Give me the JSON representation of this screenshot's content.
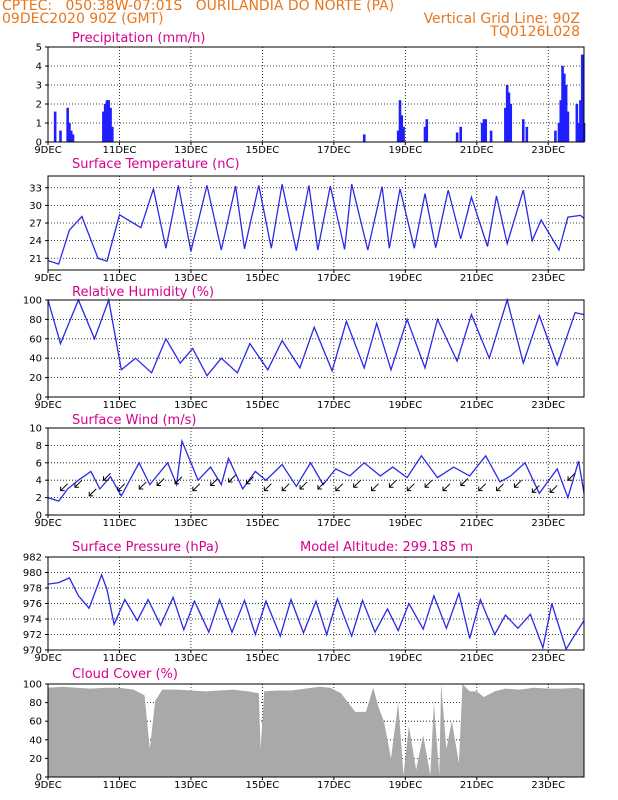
{
  "header": {
    "line1_left": "CPTEC:   050:38W-07:01S   OURILANDIA DO NORTE (PA)",
    "line2_left": "09DEC2020 90Z (GMT)",
    "line2_right": "Vertical Grid Line: 90Z",
    "line3_right": "TQ0126L028"
  },
  "x_ticks": [
    "9DEC",
    "11DEC",
    "13DEC",
    "15DEC",
    "17DEC",
    "19DEC",
    "21DEC",
    "23DEC"
  ],
  "x_tick_days": [
    0,
    2,
    4,
    6,
    8,
    10,
    12,
    14
  ],
  "x_range_days": [
    0,
    15
  ],
  "colors": {
    "line": "#2a2ae6",
    "bar": "#1f1fff",
    "cloud": "#a9a9a9",
    "title": "#d6008f",
    "header": "#e8761c"
  },
  "chart_data": [
    {
      "type": "bar",
      "title": "Precipitation (mm/h)",
      "ylim": [
        0,
        5
      ],
      "yticks": [
        0,
        1,
        2,
        3,
        4,
        5
      ],
      "bars": [
        {
          "t": 0.2,
          "v": 1.6
        },
        {
          "t": 0.35,
          "v": 0.6
        },
        {
          "t": 0.55,
          "v": 1.8
        },
        {
          "t": 0.6,
          "v": 1.0
        },
        {
          "t": 0.65,
          "v": 0.6
        },
        {
          "t": 0.7,
          "v": 0.4
        },
        {
          "t": 1.55,
          "v": 1.6
        },
        {
          "t": 1.6,
          "v": 2.0
        },
        {
          "t": 1.65,
          "v": 2.2
        },
        {
          "t": 1.7,
          "v": 2.2
        },
        {
          "t": 1.75,
          "v": 1.8
        },
        {
          "t": 1.8,
          "v": 0.8
        },
        {
          "t": 8.85,
          "v": 0.4
        },
        {
          "t": 9.8,
          "v": 0.6
        },
        {
          "t": 9.85,
          "v": 2.2
        },
        {
          "t": 9.9,
          "v": 1.4
        },
        {
          "t": 9.95,
          "v": 0.8
        },
        {
          "t": 10.55,
          "v": 0.8
        },
        {
          "t": 10.6,
          "v": 1.2
        },
        {
          "t": 11.45,
          "v": 0.5
        },
        {
          "t": 11.55,
          "v": 0.8
        },
        {
          "t": 12.15,
          "v": 1.0
        },
        {
          "t": 12.2,
          "v": 1.2
        },
        {
          "t": 12.25,
          "v": 1.2
        },
        {
          "t": 12.4,
          "v": 0.6
        },
        {
          "t": 12.8,
          "v": 1.8
        },
        {
          "t": 12.85,
          "v": 3.0
        },
        {
          "t": 12.9,
          "v": 2.6
        },
        {
          "t": 12.95,
          "v": 2.0
        },
        {
          "t": 13.3,
          "v": 1.2
        },
        {
          "t": 13.4,
          "v": 0.8
        },
        {
          "t": 14.2,
          "v": 0.6
        },
        {
          "t": 14.3,
          "v": 1.0
        },
        {
          "t": 14.35,
          "v": 2.2
        },
        {
          "t": 14.4,
          "v": 4.0
        },
        {
          "t": 14.45,
          "v": 3.6
        },
        {
          "t": 14.5,
          "v": 3.0
        },
        {
          "t": 14.55,
          "v": 1.6
        },
        {
          "t": 14.8,
          "v": 2.0
        },
        {
          "t": 14.85,
          "v": 1.0
        },
        {
          "t": 14.9,
          "v": 2.2
        },
        {
          "t": 14.95,
          "v": 4.6
        },
        {
          "t": 15.0,
          "v": 1.0
        }
      ]
    },
    {
      "type": "line",
      "title": "Surface Temperature (nC)",
      "ylim": [
        19,
        35
      ],
      "yticks": [
        21,
        24,
        27,
        30,
        33
      ],
      "y_top_label": "",
      "x": [
        0,
        0.3,
        0.6,
        0.95,
        1.4,
        1.65,
        2.0,
        2.6,
        2.95,
        3.3,
        3.65,
        4.0,
        4.45,
        4.85,
        5.25,
        5.5,
        5.9,
        6.25,
        6.55,
        6.95,
        7.3,
        7.55,
        7.9,
        8.3,
        8.5,
        8.95,
        9.35,
        9.55,
        9.85,
        10.25,
        10.55,
        10.85,
        11.2,
        11.55,
        11.85,
        12.3,
        12.55,
        12.85,
        13.3,
        13.55,
        13.8,
        14.3,
        14.55,
        14.9,
        15.0
      ],
      "values": [
        20.6,
        20.0,
        25.8,
        28.1,
        21.0,
        20.5,
        28.4,
        26.2,
        32.8,
        22.7,
        33.4,
        22.2,
        33.4,
        22.4,
        33.3,
        22.6,
        33.4,
        22.7,
        33.6,
        22.3,
        33.4,
        22.4,
        33.3,
        22.5,
        33.6,
        22.4,
        33.2,
        22.7,
        32.8,
        22.7,
        32.0,
        22.8,
        32.6,
        24.3,
        31.4,
        23.0,
        31.6,
        23.5,
        32.6,
        24.0,
        27.5,
        22.4,
        28.0,
        28.3,
        27.8
      ]
    },
    {
      "type": "line",
      "title": "Relative Humidity (%)",
      "ylim": [
        0,
        100
      ],
      "yticks": [
        0,
        20,
        40,
        60,
        80,
        100
      ],
      "x": [
        0,
        0.35,
        0.85,
        1.3,
        1.7,
        2.05,
        2.45,
        2.9,
        3.3,
        3.7,
        4.05,
        4.45,
        4.85,
        5.3,
        5.65,
        6.15,
        6.55,
        7.05,
        7.45,
        7.95,
        8.35,
        8.85,
        9.2,
        9.6,
        10.05,
        10.55,
        10.9,
        11.45,
        11.85,
        12.35,
        12.85,
        13.3,
        13.75,
        14.25,
        14.75,
        15.0
      ],
      "values": [
        100,
        55,
        100,
        60,
        100,
        28,
        40,
        25,
        60,
        35,
        50,
        22,
        40,
        25,
        55,
        28,
        58,
        30,
        72,
        27,
        78,
        30,
        76,
        28,
        80,
        30,
        80,
        37,
        85,
        40,
        100,
        35,
        84,
        33,
        87,
        85
      ]
    },
    {
      "type": "line",
      "title": "Surface Wind (m/s)",
      "ylim": [
        0,
        10
      ],
      "yticks": [
        0,
        2,
        4,
        6,
        8,
        10
      ],
      "x": [
        0,
        0.3,
        0.55,
        0.85,
        1.2,
        1.45,
        1.75,
        2.05,
        2.55,
        2.85,
        3.35,
        3.6,
        3.75,
        4.2,
        4.55,
        4.85,
        5.05,
        5.45,
        5.8,
        6.1,
        6.55,
        6.95,
        7.35,
        7.7,
        8.05,
        8.45,
        8.85,
        9.3,
        9.65,
        10.05,
        10.45,
        10.9,
        11.35,
        11.8,
        12.25,
        12.65,
        12.95,
        13.35,
        13.75,
        14.25,
        14.55,
        14.85,
        15.0
      ],
      "values": [
        2.0,
        1.6,
        3.0,
        4.0,
        5.0,
        3.0,
        4.4,
        2.2,
        6.0,
        3.5,
        6.0,
        3.5,
        8.5,
        4.0,
        5.5,
        3.5,
        6.5,
        3.0,
        5.0,
        4.0,
        5.8,
        3.3,
        6.0,
        3.5,
        5.3,
        4.5,
        6.0,
        4.5,
        5.5,
        4.3,
        6.8,
        4.3,
        5.5,
        4.5,
        6.8,
        3.8,
        4.5,
        6.0,
        2.5,
        5.3,
        2.0,
        6.2,
        2.5
      ],
      "arrows_t": [
        0.55,
        0.95,
        1.35,
        1.75,
        2.15,
        2.75,
        3.25,
        3.75,
        4.25,
        4.75,
        5.25,
        5.75,
        6.25,
        6.75,
        7.25,
        7.75,
        8.25,
        8.75,
        9.25,
        9.75,
        10.25,
        10.75,
        11.25,
        11.75,
        12.25,
        12.75,
        13.25,
        13.75,
        14.25,
        14.75
      ],
      "arrows_v": [
        3.6,
        4.0,
        3.0,
        4.8,
        3.6,
        3.8,
        4.2,
        4.4,
        3.6,
        4.2,
        4.6,
        4.4,
        3.6,
        3.6,
        3.8,
        3.8,
        3.6,
        4.0,
        3.6,
        4.0,
        3.6,
        4.0,
        3.6,
        4.2,
        3.6,
        3.6,
        4.0,
        3.4,
        3.4,
        4.8
      ]
    },
    {
      "type": "line",
      "title": "Surface Pressure (hPa)",
      "subtitle": "Model Altitude: 299.185 m",
      "ylim": [
        970,
        982
      ],
      "yticks": [
        970,
        972,
        974,
        976,
        978,
        980,
        982
      ],
      "x": [
        0,
        0.3,
        0.6,
        0.85,
        1.15,
        1.5,
        1.65,
        1.85,
        2.15,
        2.5,
        2.8,
        3.15,
        3.5,
        3.8,
        4.1,
        4.5,
        4.8,
        5.15,
        5.5,
        5.8,
        6.1,
        6.5,
        6.8,
        7.15,
        7.5,
        7.8,
        8.1,
        8.5,
        8.8,
        9.15,
        9.5,
        9.8,
        10.1,
        10.5,
        10.8,
        11.15,
        11.5,
        11.8,
        12.1,
        12.5,
        12.8,
        13.15,
        13.5,
        13.85,
        14.1,
        14.5,
        14.75,
        15.0
      ],
      "values": [
        978.5,
        978.7,
        979.3,
        977.0,
        975.4,
        979.7,
        977.8,
        973.3,
        976.5,
        973.8,
        976.5,
        973.2,
        976.8,
        972.6,
        976.3,
        972.3,
        976.5,
        972.3,
        976.4,
        972.0,
        976.3,
        971.8,
        976.5,
        972.2,
        976.3,
        972.0,
        976.6,
        971.8,
        976.4,
        972.3,
        975.3,
        972.5,
        976.0,
        972.7,
        977.0,
        972.8,
        977.3,
        971.5,
        976.5,
        972.0,
        974.5,
        972.8,
        974.6,
        970.3,
        976.0,
        970.1,
        972.0,
        973.8
      ]
    },
    {
      "type": "area",
      "title": "Cloud Cover (%)",
      "ylim": [
        0,
        100
      ],
      "yticks": [
        0,
        20,
        40,
        60,
        80,
        100
      ],
      "x": [
        0,
        0.4,
        0.8,
        1.2,
        1.6,
        2.0,
        2.4,
        2.7,
        2.85,
        3.0,
        3.2,
        3.6,
        4.0,
        4.4,
        4.8,
        5.2,
        5.6,
        5.9,
        5.95,
        6.05,
        6.4,
        6.8,
        7.2,
        7.6,
        7.9,
        8.2,
        8.6,
        8.9,
        9.1,
        9.25,
        9.4,
        9.6,
        9.8,
        9.95,
        10.1,
        10.3,
        10.5,
        10.7,
        10.8,
        10.95,
        11.0,
        11.15,
        11.3,
        11.5,
        11.6,
        11.8,
        12.0,
        12.2,
        12.5,
        12.8,
        13.2,
        13.6,
        14.0,
        14.4,
        14.8,
        15.0
      ],
      "values": [
        96,
        97,
        96,
        95,
        96,
        96,
        94,
        88,
        30,
        82,
        94,
        94,
        93,
        92,
        93,
        94,
        92,
        90,
        30,
        92,
        93,
        93,
        95,
        97,
        96,
        90,
        70,
        70,
        96,
        75,
        60,
        20,
        80,
        2,
        55,
        8,
        45,
        2,
        80,
        2,
        100,
        30,
        60,
        15,
        100,
        92,
        92,
        86,
        92,
        95,
        94,
        96,
        95,
        95,
        96,
        94
      ]
    }
  ]
}
